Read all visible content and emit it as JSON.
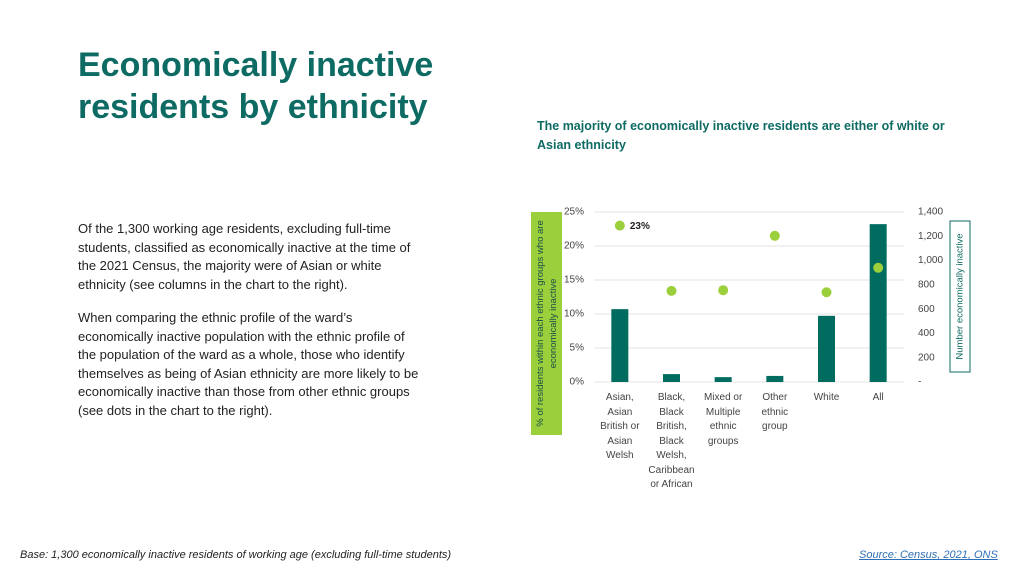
{
  "header": {
    "title": "Economically inactive residents by ethnicity"
  },
  "paragraphs": [
    "Of the 1,300 working age residents, excluding full-time students, classified as economically inactive at the time of the 2021 Census, the majority were of Asian or white ethnicity (see columns in the chart to the right).",
    "When comparing the ethnic profile of the ward’s economically inactive population with the ethnic profile of the population of the ward as a whole, those who identify themselves as being of Asian ethnicity are more likely to be economically inactive than those from other ethnic groups (see dots in the chart to the right)."
  ],
  "footnote": "Base: 1,300 economically inactive residents of working age (excluding full-time students)",
  "source": "Source: Census, 2021, ONS",
  "chart_data": {
    "type": "bar-dot",
    "title": "The majority of economically inactive residents are either of white or Asian ethnicity",
    "categories": [
      "Asian, Asian British or Asian Welsh",
      "Black, Black British, Black Welsh, Caribbean or African",
      "Mixed or Multiple ethnic groups",
      "Other ethnic group",
      "White",
      "All"
    ],
    "ylabel": "% of residents within each ethnic groups who are economically inactive",
    "y2label": "Number economically inactive",
    "ylim": [
      0,
      25
    ],
    "yticks": [
      {
        "value": 0,
        "label": "0%"
      },
      {
        "value": 5,
        "label": "5%"
      },
      {
        "value": 10,
        "label": "10%"
      },
      {
        "value": 15,
        "label": "15%"
      },
      {
        "value": 20,
        "label": "20%"
      },
      {
        "value": 25,
        "label": "25%"
      }
    ],
    "y2lim": [
      0,
      1400
    ],
    "y2ticks": [
      {
        "value": 0,
        "label": "-"
      },
      200,
      400,
      600,
      800,
      {
        "value": 1000,
        "label": "1,000"
      },
      {
        "value": 1200,
        "label": "1,200"
      },
      {
        "value": 1400,
        "label": "1,400"
      }
    ],
    "grid": true,
    "series": [
      {
        "type": "bar",
        "axis": "y2",
        "color": "#006b5f",
        "values": [
          600,
          65,
          40,
          50,
          545,
          1300
        ]
      },
      {
        "type": "dot",
        "color": "#9ccf3c",
        "values": [
          23,
          13.4,
          13.5,
          21.5,
          13.2,
          16.8
        ],
        "value_labels": [
          "23%",
          null,
          null,
          null,
          null,
          null
        ]
      }
    ]
  }
}
